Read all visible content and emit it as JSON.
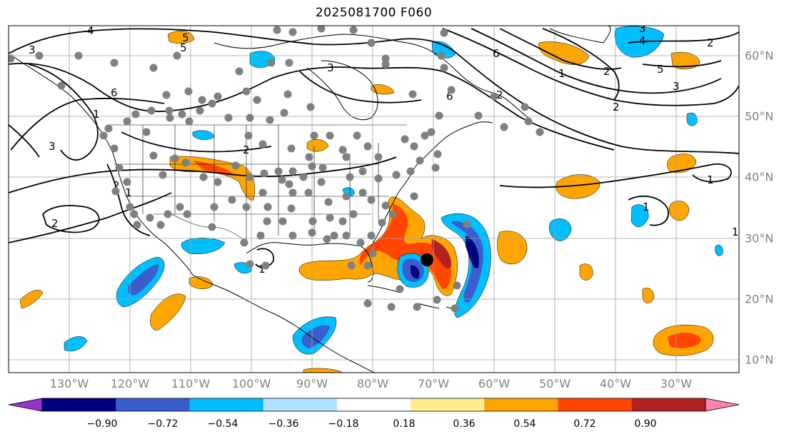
{
  "title": "2025081700 F060",
  "longitude_labels": [
    "130°W",
    "120°W",
    "110°W",
    "100°W",
    "90°W",
    "80°W",
    "70°W",
    "60°W",
    "50°W",
    "40°W",
    "30°W"
  ],
  "latitude_labels": [
    "60°N",
    "50°N",
    "40°N",
    "30°N",
    "20°N",
    "10°N"
  ],
  "colorbar": {
    "tick_labels": [
      "−0.90",
      "−0.72",
      "−0.54",
      "−0.36",
      "−0.18",
      "0.18",
      "0.36",
      "0.54",
      "0.72",
      "0.90"
    ],
    "colors": [
      "#9a32cd",
      "#000080",
      "#3a5fcd",
      "#00bfff",
      "#b0e2ff",
      "#ffffff",
      "#ffec8b",
      "#ffa500",
      "#ff4500",
      "#b22222",
      "#ff82ab"
    ]
  },
  "contour_labels": [
    "3",
    "6",
    "4",
    "3",
    "5",
    "5",
    "6",
    "2",
    "3",
    "1",
    "3",
    "2",
    "2",
    "6",
    "1",
    "2",
    "4",
    "5",
    "3",
    "2",
    "1",
    "2",
    "2",
    "1",
    "1",
    "1",
    "1"
  ],
  "marker_colors": {
    "station": "#808080",
    "center": "#000000"
  }
}
